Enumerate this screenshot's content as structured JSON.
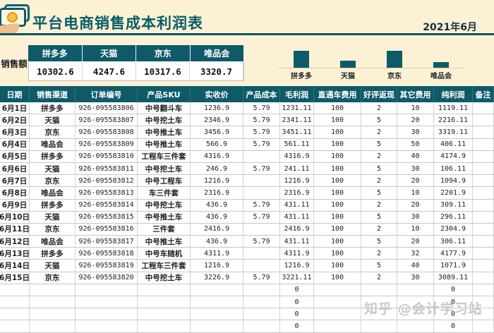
{
  "header": {
    "title": "平台电商销售成本利润表",
    "date": "2021年6月",
    "logo_icon": "money-in-hand-icon"
  },
  "summary": {
    "label": "销售额",
    "platforms": [
      "拼多多",
      "天猫",
      "京东",
      "唯品会"
    ],
    "values": [
      "10302.6",
      "4247.6",
      "10317.6",
      "3320.7"
    ]
  },
  "chart_data": {
    "type": "bar",
    "categories": [
      "拼多多",
      "天猫",
      "京东",
      "唯品会"
    ],
    "values": [
      10302.6,
      4247.6,
      10317.6,
      3320.7
    ],
    "title": "",
    "xlabel": "",
    "ylabel": "",
    "ylim": [
      0,
      10400
    ],
    "grid": false,
    "legend": "none",
    "bar_color": "#0e5a68"
  },
  "table": {
    "columns": [
      "日期",
      "销售渠道",
      "订单编号",
      "产品SKU",
      "实收价",
      "产品成本",
      "毛利润",
      "直通车费用",
      "好评返现",
      "其它费用",
      "纯利润",
      "备注"
    ],
    "rows": [
      [
        "6月1日",
        "拼多多",
        "926-095583806",
        "中号翻斗车",
        "1236.9",
        "5.79",
        "1231.11",
        "100",
        "2",
        "10",
        "1119.11",
        ""
      ],
      [
        "6月2日",
        "天猫",
        "926-095583807",
        "中号挖土车",
        "2346.9",
        "5.79",
        "2341.11",
        "100",
        "5",
        "20",
        "2216.11",
        ""
      ],
      [
        "6月3日",
        "京东",
        "926-095583808",
        "中号推土车",
        "3456.9",
        "5.79",
        "3451.11",
        "100",
        "2",
        "30",
        "3319.11",
        ""
      ],
      [
        "6月4日",
        "唯品会",
        "926-095583809",
        "中号推土车",
        "566.9",
        "5.79",
        "561.11",
        "100",
        "5",
        "50",
        "406.11",
        ""
      ],
      [
        "6月5日",
        "拼多多",
        "926-095583810",
        "工程车三件套",
        "4316.9",
        "",
        "4316.9",
        "100",
        "2",
        "40",
        "4174.9",
        ""
      ],
      [
        "6月6日",
        "天猫",
        "926-095583811",
        "中号挖土车",
        "246.9",
        "5.79",
        "241.11",
        "100",
        "5",
        "30",
        "106.11",
        ""
      ],
      [
        "6月7日",
        "京东",
        "926-095583812",
        "中号工程车",
        "1216.9",
        "",
        "1216.9",
        "100",
        "2",
        "20",
        "1094.9",
        ""
      ],
      [
        "6月8日",
        "唯品会",
        "926-095583813",
        "车三件套",
        "2316.9",
        "",
        "2316.9",
        "100",
        "5",
        "10",
        "2201.9",
        ""
      ],
      [
        "6月9日",
        "拼多多",
        "926-095583814",
        "中号挖土车",
        "436.9",
        "5.79",
        "431.11",
        "100",
        "2",
        "20",
        "309.11",
        ""
      ],
      [
        "6月10日",
        "天猫",
        "926-095583815",
        "中号推土车",
        "436.9",
        "5.79",
        "431.11",
        "100",
        "5",
        "30",
        "296.11",
        ""
      ],
      [
        "6月11日",
        "京东",
        "926-095583816",
        "三件套",
        "2416.9",
        "",
        "2416.9",
        "100",
        "2",
        "10",
        "2304.9",
        ""
      ],
      [
        "6月12日",
        "唯品会",
        "926-095583817",
        "中号推土车",
        "436.9",
        "5.79",
        "431.11",
        "100",
        "5",
        "20",
        "306.11",
        ""
      ],
      [
        "6月13日",
        "拼多多",
        "926-095583818",
        "中号车随机",
        "4311.9",
        "",
        "4311.9",
        "100",
        "2",
        "32",
        "4177.9",
        ""
      ],
      [
        "6月14日",
        "天猫",
        "926-095583819",
        "工程车三件套",
        "1216.9",
        "",
        "1216.9",
        "100",
        "5",
        "40",
        "1071.9",
        ""
      ],
      [
        "6月15日",
        "京东",
        "926-095583820",
        "中号挖土车",
        "3226.9",
        "5.79",
        "3221.11",
        "100",
        "2",
        "30",
        "3089.11",
        ""
      ]
    ],
    "empty_rows": [
      [
        "",
        "",
        "",
        "",
        "",
        "",
        "0",
        "",
        "",
        "",
        "0",
        ""
      ],
      [
        "",
        "",
        "",
        "",
        "",
        "",
        "0",
        "",
        "",
        "",
        "0",
        ""
      ],
      [
        "",
        "",
        "",
        "",
        "",
        "",
        "0",
        "",
        "",
        "",
        "0",
        ""
      ],
      [
        "",
        "",
        "",
        "",
        "",
        "",
        "0",
        "",
        "",
        "",
        "0",
        ""
      ]
    ]
  },
  "watermark": {
    "text": "知乎 @会计学习站"
  },
  "colors": {
    "accent_teal": "#0e5a68",
    "background_cream": "#fbf2d6",
    "rule_dark": "#0d5460",
    "grid_gray": "#c6c6c6",
    "coin_gold": "#f5c33b",
    "hand_tan": "#eec08c",
    "watermark_gray": "#c9c9c9"
  }
}
